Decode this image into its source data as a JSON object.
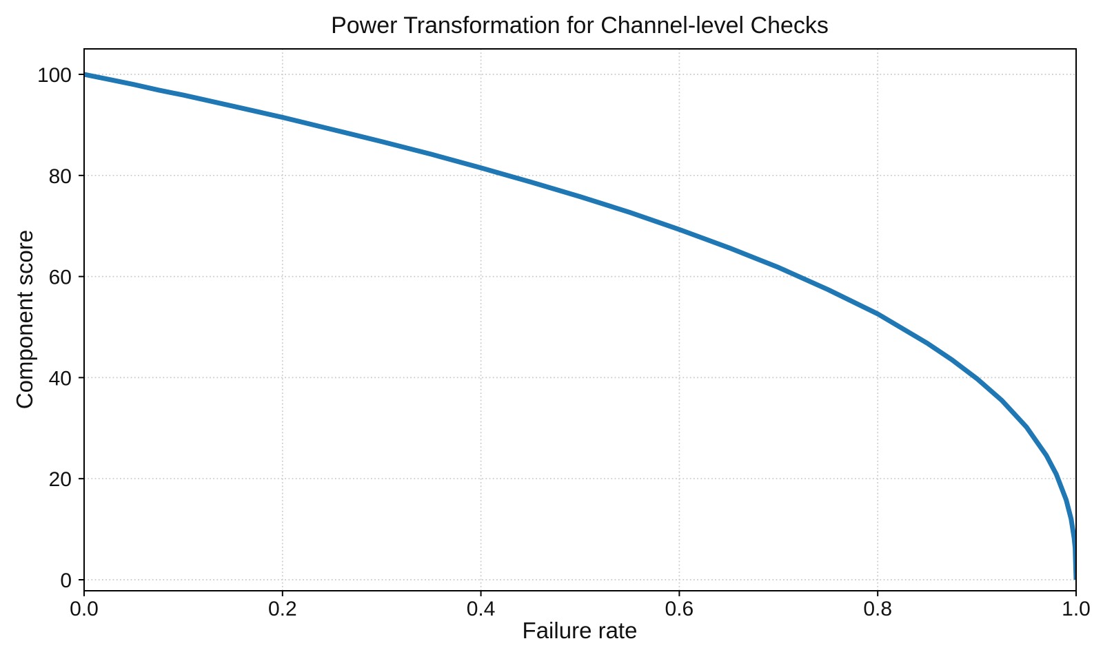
{
  "chart_data": {
    "type": "line",
    "title": "Power Transformation for Channel-level Checks",
    "xlabel": "Failure rate",
    "ylabel": "Component score",
    "xlim": [
      0.0,
      1.0
    ],
    "ylim": [
      0,
      100
    ],
    "grid": "dotted",
    "legend_position": "none",
    "x_ticks": {
      "values": [
        0.0,
        0.2,
        0.4,
        0.6,
        0.8,
        1.0
      ],
      "labels": [
        "0.0",
        "0.2",
        "0.4",
        "0.6",
        "0.8",
        "1.0"
      ]
    },
    "y_ticks": {
      "values": [
        0,
        20,
        40,
        60,
        80,
        100
      ],
      "labels": [
        "0",
        "20",
        "40",
        "60",
        "80",
        "100"
      ]
    },
    "series": [
      {
        "name": "power-transformation-curve",
        "color": "#1f77b4",
        "line_width": 7,
        "x": [
          0,
          0.025,
          0.05,
          0.075,
          0.1,
          0.15,
          0.2,
          0.25,
          0.3,
          0.35,
          0.4,
          0.45,
          0.5,
          0.55,
          0.6,
          0.65,
          0.7,
          0.75,
          0.8,
          0.85,
          0.875,
          0.9,
          0.925,
          0.95,
          0.97,
          0.98,
          0.99,
          0.995,
          0.998,
          0.999,
          1.0
        ],
        "y": [
          100,
          99.0,
          98.0,
          96.9,
          95.9,
          93.7,
          91.5,
          89.1,
          86.7,
          84.2,
          81.5,
          78.7,
          75.8,
          72.7,
          69.3,
          65.7,
          61.8,
          57.4,
          52.6,
          46.8,
          43.5,
          39.8,
          35.5,
          30.2,
          24.6,
          20.9,
          15.8,
          12.0,
          8.3,
          6.3,
          0
        ]
      }
    ]
  },
  "colors": {
    "background": "#ffffff",
    "line": "#1f77b4",
    "grid": "#c9c9c9",
    "spine": "#000000",
    "text": "#111111"
  }
}
